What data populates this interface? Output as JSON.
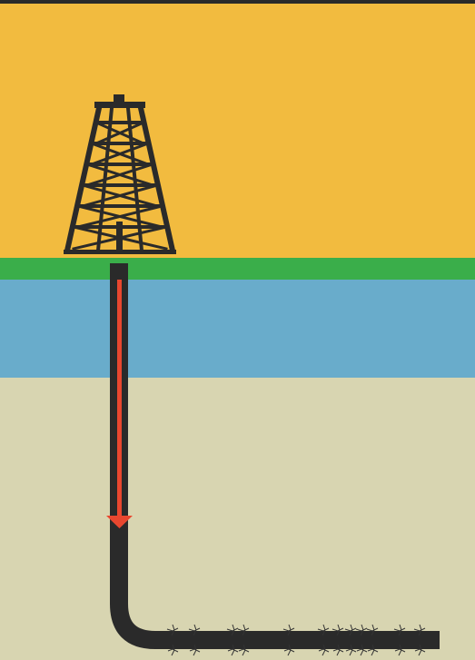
{
  "colors": {
    "frame": "#2a2a2a",
    "sky": "#F2BB3F",
    "ground_surface": "#3AAE4A",
    "aquifer": "#69ACCB",
    "shale": "#D8D5B1",
    "rig": "#2a2a2a",
    "well_pipe": "#2a2a2a",
    "arrow": "#E8472F",
    "fractures": "#333333"
  },
  "icons": {
    "rig": "drilling-rig-icon",
    "arrow": "down-arrow-icon"
  },
  "fracture_count": 12
}
